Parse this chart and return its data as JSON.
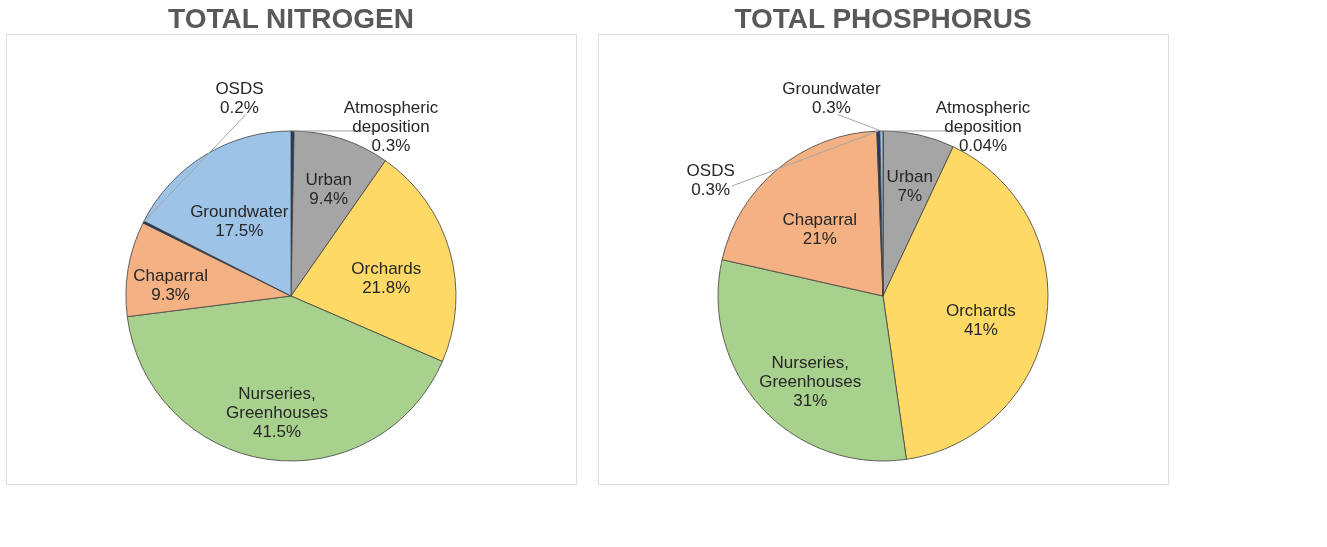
{
  "chart_data": [
    {
      "type": "pie",
      "title": "TOTAL NITROGEN",
      "legend": false,
      "categories": [
        "Atmospheric deposition",
        "Urban",
        "Orchards",
        "Nurseries, Greenhouses",
        "Chaparral",
        "OSDS",
        "Groundwater"
      ],
      "values": [
        0.3,
        9.4,
        21.8,
        41.5,
        9.3,
        0.2,
        17.5
      ],
      "value_labels": [
        "0.3%",
        "9.4%",
        "21.8%",
        "41.5%",
        "9.3%",
        "0.2%",
        "17.5%"
      ],
      "colors": [
        "#1f3864",
        "#a5a5a5",
        "#ffd966",
        "#a9d18e",
        "#f4b183",
        "#1f3864",
        "#9dc3e6"
      ]
    },
    {
      "type": "pie",
      "title": "TOTAL PHOSPHORUS",
      "legend": false,
      "categories": [
        "Atmospheric deposition",
        "Urban",
        "Orchards",
        "Nurseries, Greenhouses",
        "Chaparral",
        "OSDS",
        "Groundwater"
      ],
      "values": [
        0.04,
        7,
        41,
        31,
        21,
        0.3,
        0.3
      ],
      "value_labels": [
        "0.04%",
        "7%",
        "41%",
        "31%",
        "21%",
        "0.3%",
        "0.3%"
      ],
      "colors": [
        "#1f3864",
        "#a5a5a5",
        "#ffd966",
        "#a9d18e",
        "#f4b183",
        "#1f3864",
        "#9dc3e6"
      ]
    }
  ]
}
